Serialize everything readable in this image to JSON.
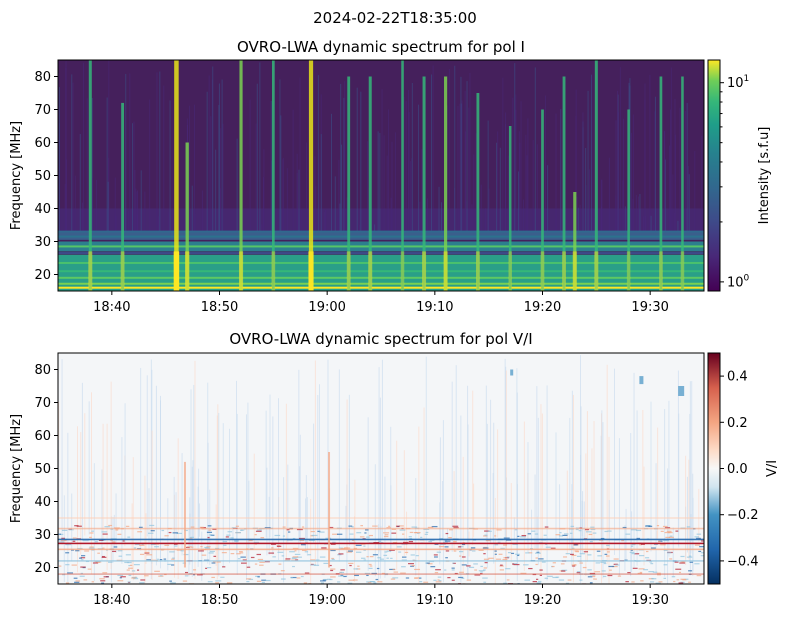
{
  "suptitle": "2024-02-22T18:35:00",
  "chart_data": [
    {
      "type": "heatmap",
      "title": "OVRO-LWA dynamic spectrum for pol I",
      "xlabel": "",
      "ylabel": "Frequency [MHz]",
      "x_ticks": [
        "18:40",
        "18:50",
        "19:00",
        "19:10",
        "19:20",
        "19:30"
      ],
      "x_tick_values_min": [
        5,
        15,
        25,
        35,
        45,
        55
      ],
      "x_range": [
        "18:35",
        "19:35"
      ],
      "ylim": [
        15,
        85
      ],
      "y_ticks": [
        20,
        30,
        40,
        50,
        60,
        70,
        80
      ],
      "colormap": "viridis",
      "color_scale": "log",
      "colorbar_label": "Intensity [s.f.u]",
      "colorbar_range": [
        0.9,
        13
      ],
      "colorbar_ticks": [
        "10^0",
        "10^1"
      ],
      "colorbar_tick_values": [
        1,
        10
      ],
      "bursts": [
        {
          "time": "18:38",
          "fmax": 85,
          "strength": 0.5
        },
        {
          "time": "18:41",
          "fmax": 72,
          "strength": 0.45
        },
        {
          "time": "18:46",
          "fmax": 85,
          "strength": 1.0
        },
        {
          "time": "18:47",
          "fmax": 60,
          "strength": 0.6
        },
        {
          "time": "18:52",
          "fmax": 85,
          "strength": 0.55
        },
        {
          "time": "18:55",
          "fmax": 85,
          "strength": 0.4
        },
        {
          "time": "18:58.5",
          "fmax": 85,
          "strength": 0.9
        },
        {
          "time": "19:02",
          "fmax": 80,
          "strength": 0.45
        },
        {
          "time": "19:04",
          "fmax": 80,
          "strength": 0.5
        },
        {
          "time": "19:07",
          "fmax": 85,
          "strength": 0.35
        },
        {
          "time": "19:09",
          "fmax": 80,
          "strength": 0.5
        },
        {
          "time": "19:11",
          "fmax": 80,
          "strength": 0.55
        },
        {
          "time": "19:14",
          "fmax": 75,
          "strength": 0.45
        },
        {
          "time": "19:17",
          "fmax": 65,
          "strength": 0.35
        },
        {
          "time": "19:20",
          "fmax": 70,
          "strength": 0.4
        },
        {
          "time": "19:22",
          "fmax": 80,
          "strength": 0.45
        },
        {
          "time": "19:23",
          "fmax": 45,
          "strength": 0.55
        },
        {
          "time": "19:25",
          "fmax": 85,
          "strength": 0.5
        },
        {
          "time": "19:28",
          "fmax": 70,
          "strength": 0.35
        },
        {
          "time": "19:31",
          "fmax": 80,
          "strength": 0.4
        },
        {
          "time": "19:33",
          "fmax": 80,
          "strength": 0.35
        }
      ],
      "bright_bands_mhz": [
        [
          15,
          26
        ],
        [
          27,
          30
        ],
        [
          30.5,
          33
        ]
      ]
    },
    {
      "type": "heatmap",
      "title": "OVRO-LWA dynamic spectrum for pol V/I",
      "xlabel": "",
      "ylabel": "Frequency [MHz]",
      "x_ticks": [
        "18:40",
        "18:50",
        "19:00",
        "19:10",
        "19:20",
        "19:30"
      ],
      "x_tick_values_min": [
        5,
        15,
        25,
        35,
        45,
        55
      ],
      "x_range": [
        "18:35",
        "19:35"
      ],
      "ylim": [
        15,
        85
      ],
      "y_ticks": [
        20,
        30,
        40,
        50,
        60,
        70,
        80
      ],
      "colormap": "RdBu_r",
      "color_scale": "linear",
      "colorbar_label": "V/I",
      "colorbar_range": [
        -0.5,
        0.5
      ],
      "colorbar_ticks": [
        "0.4",
        "0.2",
        "0.0",
        "−0.2",
        "−0.4"
      ],
      "colorbar_tick_values": [
        0.4,
        0.2,
        0.0,
        -0.2,
        -0.4
      ]
    }
  ]
}
